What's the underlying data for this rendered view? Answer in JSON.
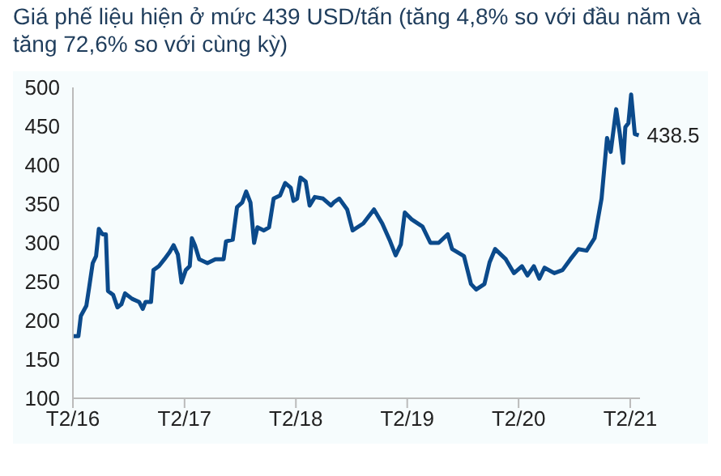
{
  "chart_data": {
    "type": "line",
    "title": "Giá phế liệu hiện ở mức 439 USD/tấn (tăng 4,8% so với đầu năm và tăng 72,6% so với cùng kỳ)",
    "x": [
      "2016-02-01",
      "2016-02-19",
      "2016-02-27",
      "2016-03-16",
      "2016-03-25",
      "2016-04-06",
      "2016-04-17",
      "2016-04-26",
      "2016-05-08",
      "2016-05-19",
      "2016-05-26",
      "2016-06-12",
      "2016-06-26",
      "2016-07-09",
      "2016-07-21",
      "2016-08-13",
      "2016-09-05",
      "2016-09-17",
      "2016-09-26",
      "2016-10-14",
      "2016-10-22",
      "2016-11-09",
      "2016-11-27",
      "2016-12-14",
      "2016-12-27",
      "2017-01-10",
      "2017-01-22",
      "2017-02-05",
      "2017-02-18",
      "2017-02-25",
      "2017-03-07",
      "2017-03-21",
      "2017-04-17",
      "2017-05-13",
      "2017-06-09",
      "2017-06-17",
      "2017-07-09",
      "2017-07-23",
      "2017-08-09",
      "2017-08-22",
      "2017-09-05",
      "2017-09-17",
      "2017-09-28",
      "2017-10-19",
      "2017-11-05",
      "2017-11-20",
      "2017-12-11",
      "2017-12-28",
      "2018-01-15",
      "2018-01-24",
      "2018-02-05",
      "2018-02-16",
      "2018-03-05",
      "2018-03-18",
      "2018-04-04",
      "2018-05-01",
      "2018-05-27",
      "2018-06-05",
      "2018-06-23",
      "2018-07-19",
      "2018-08-06",
      "2018-09-10",
      "2018-10-15",
      "2018-11-11",
      "2018-12-07",
      "2018-12-25",
      "2019-01-11",
      "2019-01-24",
      "2019-02-16",
      "2019-03-23",
      "2019-04-18",
      "2019-05-15",
      "2019-06-14",
      "2019-06-28",
      "2019-08-06",
      "2019-08-29",
      "2019-09-15",
      "2019-10-12",
      "2019-10-29",
      "2019-11-16",
      "2019-12-21",
      "2020-01-17",
      "2020-02-12",
      "2020-03-01",
      "2020-03-22",
      "2020-04-09",
      "2020-04-26",
      "2020-05-28",
      "2020-06-24",
      "2020-07-20",
      "2020-08-15",
      "2020-09-11",
      "2020-10-07",
      "2020-10-30",
      "2020-11-17",
      "2020-11-29",
      "2020-12-17",
      "2020-12-29",
      "2021-01-09",
      "2021-01-16",
      "2021-01-26",
      "2021-02-04",
      "2021-02-16",
      "2021-03-01"
    ],
    "series": [
      {
        "color": "#0b4a8b",
        "values": [
          180,
          180,
          206,
          219,
          242,
          274,
          283,
          318,
          311,
          311,
          238,
          233,
          217,
          221,
          235,
          228,
          224,
          215,
          224,
          224,
          265,
          270,
          279,
          288,
          297,
          285,
          249,
          265,
          270,
          306,
          297,
          279,
          274,
          279,
          279,
          302,
          304,
          346,
          352,
          366,
          352,
          300,
          320,
          316,
          320,
          357,
          361,
          377,
          371,
          354,
          357,
          384,
          379,
          348,
          359,
          357,
          348,
          352,
          357,
          343,
          316,
          325,
          343,
          325,
          302,
          284,
          298,
          339,
          330,
          321,
          300,
          300,
          311,
          292,
          283,
          247,
          240,
          247,
          275,
          292,
          279,
          261,
          270,
          258,
          270,
          254,
          268,
          261,
          265,
          279,
          292,
          290,
          306,
          357,
          435,
          417,
          472,
          440,
          403,
          449,
          454,
          491,
          440,
          438.5
        ]
      }
    ],
    "xlim": [
      "2016-02-01",
      "2021-03-05"
    ],
    "xticks": [
      {
        "value": "2016-02",
        "label": "T2/16"
      },
      {
        "value": "2017-02",
        "label": "T2/17"
      },
      {
        "value": "2018-02",
        "label": "T2/18"
      },
      {
        "value": "2019-02",
        "label": "T2/19"
      },
      {
        "value": "2020-02",
        "label": "T2/20"
      },
      {
        "value": "2021-02",
        "label": "T2/21"
      }
    ],
    "ylim": [
      100,
      500
    ],
    "yticks": [
      100,
      150,
      200,
      250,
      300,
      350,
      400,
      450,
      500
    ],
    "annotations": [
      {
        "text": "438.5",
        "x": "2021-03-01",
        "y": 438.5
      }
    ],
    "grid": false,
    "legend": false,
    "marker": "none",
    "line_style": "solid"
  }
}
